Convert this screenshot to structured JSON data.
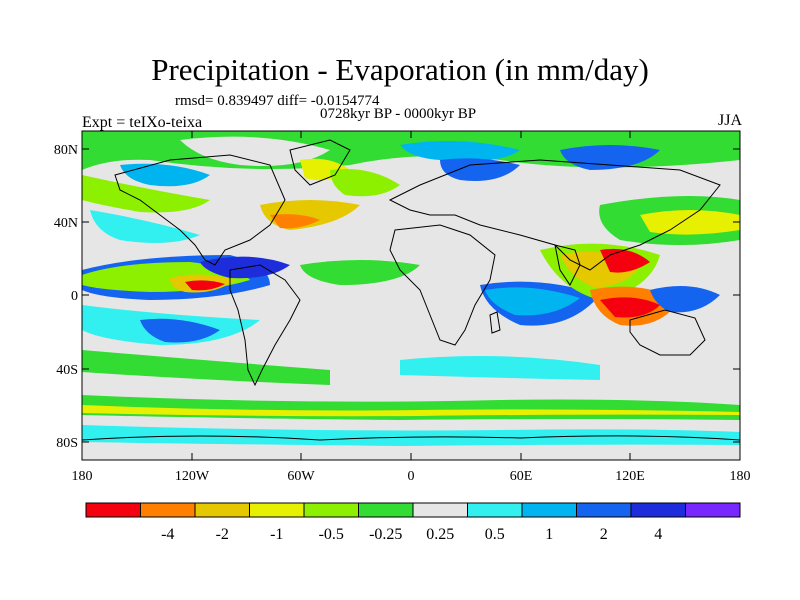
{
  "title": "Precipitation - Evaporation (in mm/day)",
  "stats": "rmsd= 0.839497 diff= -0.0154774",
  "period": "0728kyr BP - 0000kyr BP",
  "experiment": "Expt = teIXo-teixa",
  "season": "JJA",
  "axes": {
    "y_ticks": [
      "80N",
      "40N",
      "0",
      "40S",
      "80S"
    ],
    "x_ticks": [
      "180",
      "120W",
      "60W",
      "0",
      "60E",
      "120E",
      "180"
    ]
  },
  "legend": {
    "colors": [
      "#f5000f",
      "#ff7f00",
      "#e6c800",
      "#e6f000",
      "#8cf000",
      "#32dc32",
      "#e6e6e6",
      "#32f0f0",
      "#00b4f0",
      "#1464f0",
      "#1e2ddc",
      "#7828ff"
    ],
    "labels": [
      "-4",
      "-2",
      "-1",
      "-0.5",
      "-0.25",
      "0.25",
      "0.5",
      "1",
      "2",
      "4"
    ]
  }
}
